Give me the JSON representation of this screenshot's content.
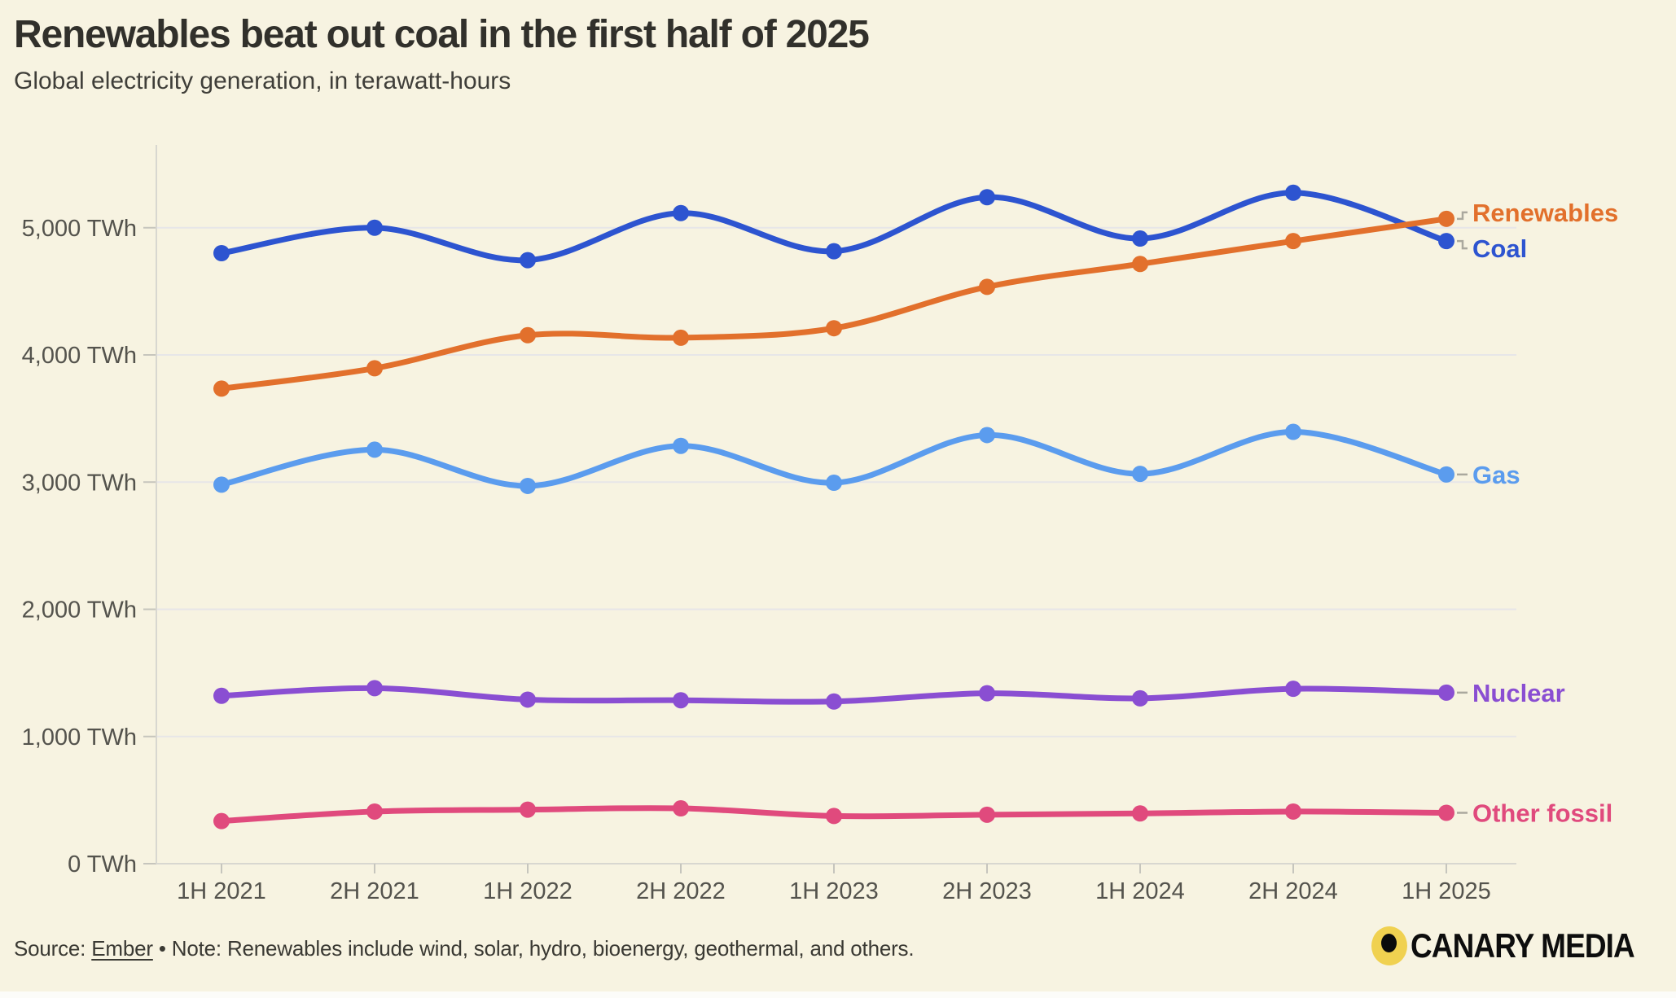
{
  "header": {
    "title": "Renewables beat out coal in the first half of 2025",
    "subtitle": "Global electricity generation, in terawatt-hours"
  },
  "footer": {
    "source_label": "Source: ",
    "source_link": "Ember",
    "note": " • Note: Renewables include wind, solar, hydro, bioenergy, geothermal, and others.",
    "brand": "CANARY MEDIA"
  },
  "colors": {
    "background": "#f7f3e1",
    "title_text": "#31302b",
    "axis_text": "#54534d",
    "gridline": "#e7e6e8",
    "axis_line": "#d8d7d0",
    "tick": "#c6c5bd",
    "connector": "#aaa89e",
    "logo_yellow": "#f0d150",
    "coal": "#2d54d0",
    "renewables": "#e2702c",
    "gas": "#5b9cee",
    "nuclear": "#8a4ed2",
    "other_fossil": "#e04a7d"
  },
  "chart_data": {
    "type": "line",
    "title": "Renewables beat out coal in the first half of 2025",
    "subtitle": "Global electricity generation, in terawatt-hours",
    "categories": [
      "1H 2021",
      "2H 2021",
      "1H 2022",
      "2H 2022",
      "1H 2023",
      "2H 2023",
      "1H 2024",
      "2H 2024",
      "1H 2025"
    ],
    "y_unit": "TWh",
    "yticks": [
      0,
      1000,
      2000,
      3000,
      4000,
      5000
    ],
    "ylim": [
      0,
      5650
    ],
    "grid": true,
    "legend_position": "end-of-line-labels",
    "series": [
      {
        "name": "Gas",
        "color": "#5b9cee",
        "label_offset": 0,
        "values": [
          2980,
          3255,
          2970,
          3285,
          2995,
          3370,
          3065,
          3395,
          3060
        ]
      },
      {
        "name": "Nuclear",
        "color": "#8a4ed2",
        "label_offset": 0,
        "values": [
          1320,
          1380,
          1290,
          1285,
          1275,
          1340,
          1300,
          1375,
          1345
        ]
      },
      {
        "name": "Other fossil",
        "color": "#e04a7d",
        "label_offset": 0,
        "values": [
          335,
          410,
          425,
          435,
          375,
          385,
          395,
          410,
          400
        ]
      },
      {
        "name": "Coal",
        "color": "#2d54d0",
        "label_offset": 9,
        "values": [
          4800,
          5000,
          4745,
          5115,
          4815,
          5240,
          4915,
          5275,
          4895
        ]
      },
      {
        "name": "Renewables",
        "color": "#e2702c",
        "label_offset": -8,
        "values": [
          3735,
          3895,
          4155,
          4135,
          4210,
          4535,
          4715,
          4895,
          5070
        ]
      }
    ]
  }
}
